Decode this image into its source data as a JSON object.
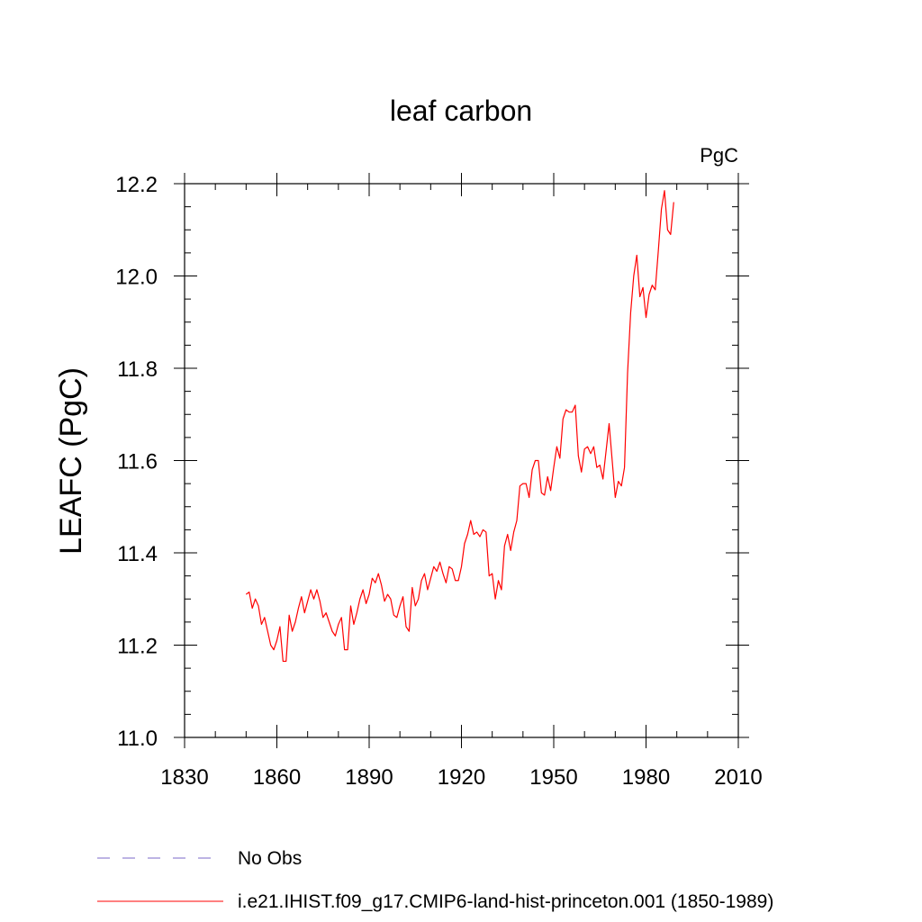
{
  "chart_data": {
    "type": "line",
    "title": "leaf carbon",
    "units": "PgC",
    "ylabel": "LEAFC  (PgC)",
    "xlabel": "",
    "xlim": [
      1830,
      2010
    ],
    "ylim": [
      11.0,
      12.2
    ],
    "xticks": [
      "1830",
      "1860",
      "1890",
      "1920",
      "1950",
      "1980",
      "2010"
    ],
    "yticks": [
      "11.0",
      "11.2",
      "11.4",
      "11.6",
      "11.8",
      "12.0",
      "12.2"
    ],
    "grid": false,
    "legend_position": "bottom",
    "series": [
      {
        "name": "No Obs",
        "color": "#7b68c8",
        "style": "dashed",
        "values": []
      },
      {
        "name": "i.e21.IHIST.f09_g17.CMIP6-land-hist-princeton.001 (1850-1989)",
        "color": "#ff0000",
        "style": "solid",
        "x_start": 1850,
        "x_end": 1989,
        "values": [
          11.31,
          11.315,
          11.28,
          11.3,
          11.285,
          11.245,
          11.26,
          11.23,
          11.2,
          11.19,
          11.21,
          11.24,
          11.165,
          11.165,
          11.265,
          11.23,
          11.25,
          11.28,
          11.305,
          11.27,
          11.295,
          11.32,
          11.3,
          11.32,
          11.295,
          11.26,
          11.27,
          11.25,
          11.23,
          11.22,
          11.245,
          11.26,
          11.19,
          11.19,
          11.285,
          11.245,
          11.27,
          11.3,
          11.32,
          11.29,
          11.31,
          11.345,
          11.335,
          11.355,
          11.33,
          11.295,
          11.31,
          11.3,
          11.265,
          11.26,
          11.285,
          11.305,
          11.24,
          11.23,
          11.325,
          11.285,
          11.3,
          11.34,
          11.355,
          11.32,
          11.345,
          11.37,
          11.36,
          11.38,
          11.355,
          11.335,
          11.37,
          11.365,
          11.34,
          11.34,
          11.37,
          11.42,
          11.44,
          11.47,
          11.44,
          11.445,
          11.435,
          11.45,
          11.445,
          11.35,
          11.355,
          11.3,
          11.34,
          11.32,
          11.415,
          11.44,
          11.405,
          11.445,
          11.47,
          11.545,
          11.55,
          11.55,
          11.52,
          11.58,
          11.6,
          11.6,
          11.53,
          11.525,
          11.565,
          11.535,
          11.585,
          11.63,
          11.605,
          11.69,
          11.71,
          11.705,
          11.705,
          11.72,
          11.61,
          11.575,
          11.625,
          11.63,
          11.615,
          11.63,
          11.585,
          11.59,
          11.56,
          11.62,
          11.68,
          11.6,
          11.52,
          11.555,
          11.545,
          11.585,
          11.79,
          11.92,
          12.0,
          12.045,
          11.955,
          11.975,
          11.91,
          11.96,
          11.98,
          11.97,
          12.055,
          12.145,
          12.185,
          12.1,
          12.09,
          12.16
        ]
      }
    ]
  }
}
